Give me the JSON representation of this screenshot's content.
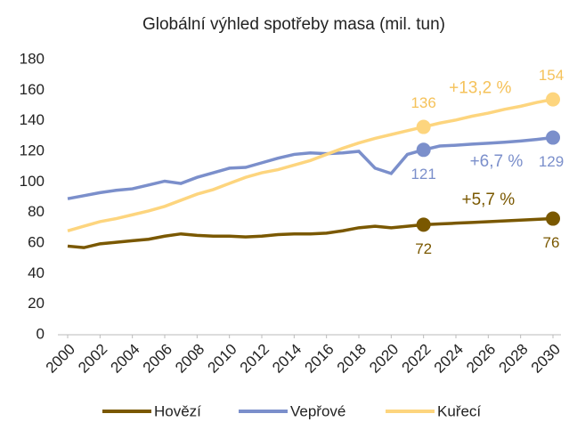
{
  "chart_data": {
    "type": "line",
    "title": "Globální výhled spotřeby masa (mil. tun)",
    "x": [
      2000,
      2001,
      2002,
      2003,
      2004,
      2005,
      2006,
      2007,
      2008,
      2009,
      2010,
      2011,
      2012,
      2013,
      2014,
      2015,
      2016,
      2017,
      2018,
      2019,
      2020,
      2021,
      2022,
      2023,
      2024,
      2025,
      2026,
      2027,
      2028,
      2029,
      2030
    ],
    "series": [
      {
        "name": "Hovězí",
        "color": "#7a5800",
        "values": [
          58,
          57,
          59.5,
          60.5,
          61.5,
          62.5,
          64.5,
          66,
          65,
          64.5,
          64.5,
          64,
          64.5,
          65.5,
          66,
          66,
          66.5,
          68,
          70,
          71,
          70,
          71,
          72,
          72.5,
          73,
          73.5,
          74,
          74.5,
          75,
          75.5,
          76
        ]
      },
      {
        "name": "Vepřové",
        "color": "#7b8fcb",
        "values": [
          89,
          91,
          93,
          94.5,
          95.5,
          98,
          100.5,
          99,
          103,
          106,
          109,
          109.5,
          112.5,
          115.5,
          118,
          119,
          118.5,
          119,
          120,
          109,
          105.5,
          118,
          121,
          123.5,
          124,
          124.7,
          125.3,
          126,
          126.8,
          127.8,
          129
        ]
      },
      {
        "name": "Kuřecí",
        "color": "#fdd57e",
        "values": [
          68,
          71,
          74,
          76,
          78.5,
          81,
          84,
          88,
          92,
          95,
          99,
          103,
          106,
          108,
          111,
          114,
          118,
          122,
          125.5,
          128.5,
          131,
          133.5,
          136,
          138.5,
          140.5,
          143,
          145,
          147.5,
          149.5,
          152,
          154
        ]
      }
    ],
    "highlight_x": [
      2022,
      2030
    ],
    "annotations": [
      {
        "text": "+13,2 %",
        "x": 2025.5,
        "y": 161,
        "series": 2
      },
      {
        "text": "+6,7 %",
        "x": 2026.5,
        "y": 113,
        "series": 1
      },
      {
        "text": "+5,7 %",
        "x": 2026,
        "y": 88,
        "series": 0
      }
    ],
    "xlim": [
      2000,
      2030
    ],
    "xticks": [
      2000,
      2002,
      2004,
      2006,
      2008,
      2010,
      2012,
      2014,
      2016,
      2018,
      2020,
      2022,
      2024,
      2026,
      2028,
      2030
    ],
    "ylim": [
      0,
      180
    ],
    "yticks": [
      0,
      20,
      40,
      60,
      80,
      100,
      120,
      140,
      160,
      180
    ],
    "grid": false,
    "legend": "bottom"
  }
}
